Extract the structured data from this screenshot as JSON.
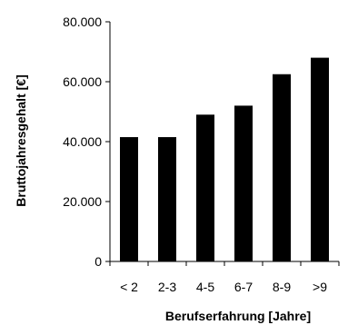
{
  "chart_data": {
    "type": "bar",
    "title": "",
    "xlabel": "Berufserfahrung [Jahre]",
    "ylabel": "Bruttojahresgehalt [€]",
    "categories": [
      "< 2",
      "2-3",
      "4-5",
      "6-7",
      "8-9",
      ">9"
    ],
    "values": [
      41500,
      41500,
      49000,
      52000,
      62500,
      68000
    ],
    "ylim": [
      0,
      80000
    ],
    "yticks": [
      0,
      20000,
      40000,
      60000,
      80000
    ],
    "ytick_labels": [
      "0",
      "20.000",
      "40.000",
      "60.000",
      "80.000"
    ],
    "grid": false,
    "legend": "none",
    "bar_color": "#000000"
  }
}
